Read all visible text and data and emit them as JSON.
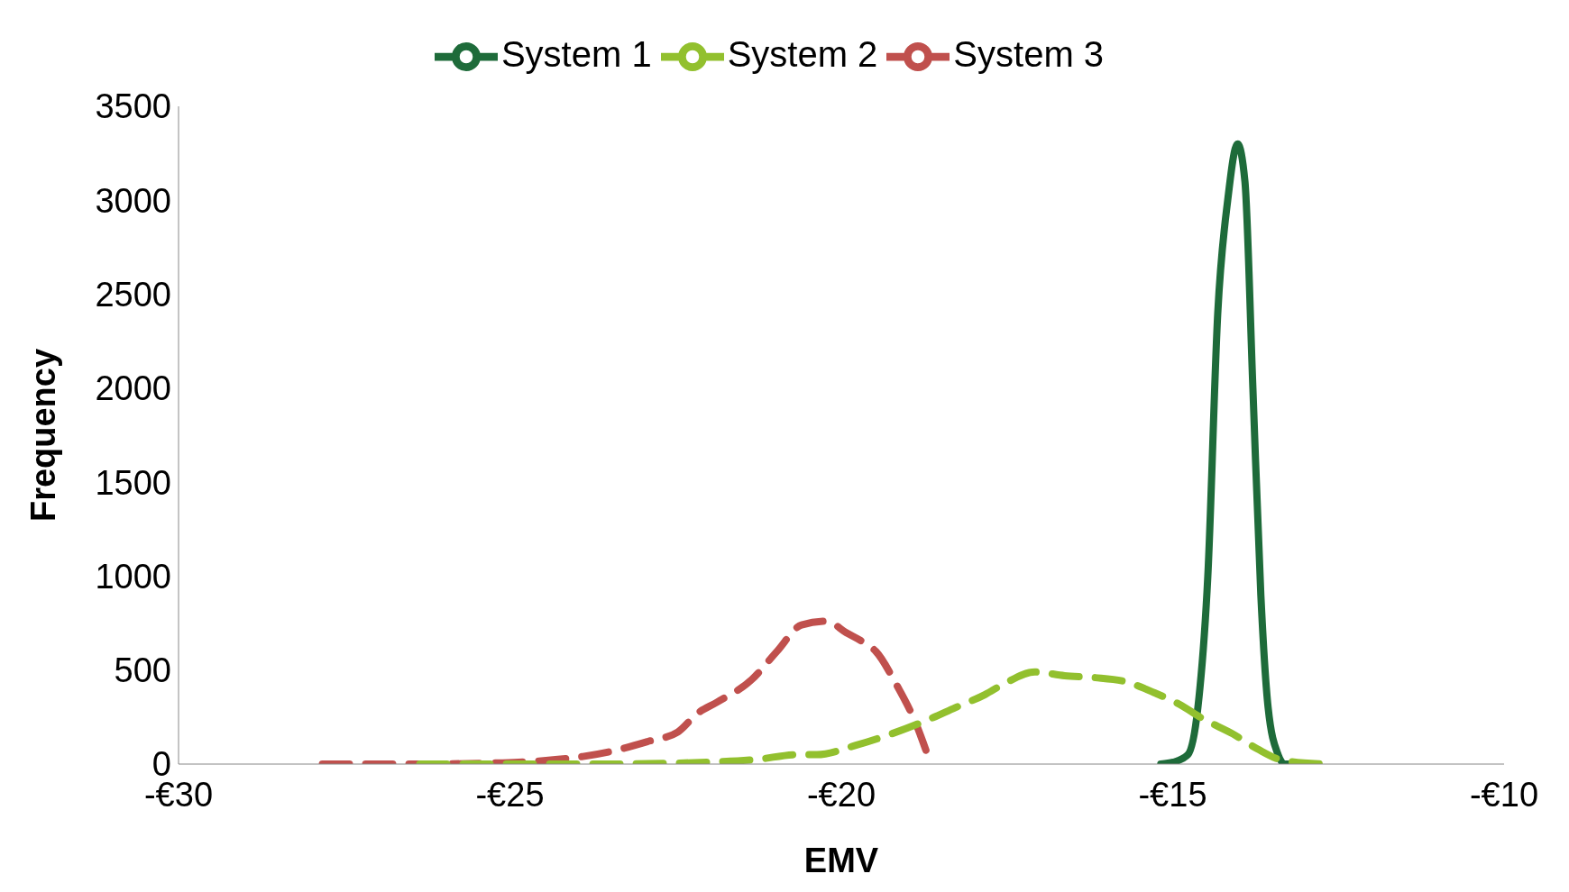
{
  "chart_data": {
    "type": "line",
    "xlabel": "EMV",
    "ylabel": "Frequency",
    "legend": "top",
    "marker": "none",
    "xlim": [
      -30,
      -10
    ],
    "xticks": [
      {
        "value": -30,
        "label": "-€30"
      },
      {
        "value": -25,
        "label": "-€25"
      },
      {
        "value": -20,
        "label": "-€20"
      },
      {
        "value": -15,
        "label": "-€15"
      },
      {
        "value": -10,
        "label": "-€10"
      }
    ],
    "ylim": [
      0,
      3500
    ],
    "yticks": [
      0,
      500,
      1000,
      1500,
      2000,
      2500,
      3000,
      3500
    ],
    "grid": false,
    "series": [
      {
        "name": "System 1",
        "color": "#1e6b3a",
        "line_style": "solid",
        "x": [
          -15.18,
          -14.99,
          -14.77,
          -14.62,
          -14.47,
          -14.32,
          -14.17,
          -14.02,
          -13.91,
          -13.79,
          -13.67,
          -13.56,
          -13.41,
          -13.31,
          -13.19
        ],
        "values": [
          0,
          10,
          50,
          300,
          1000,
          2400,
          3000,
          3300,
          3100,
          2000,
          900,
          300,
          50,
          0,
          0
        ]
      },
      {
        "name": "System 3",
        "color": "#c0504d",
        "line_style": "dashed",
        "x": [
          -27.83,
          -26.9,
          -26.36,
          -25.31,
          -24.87,
          -24.42,
          -23.9,
          -23.44,
          -22.92,
          -22.47,
          -22.17,
          -21.87,
          -21.35,
          -20.97,
          -20.6,
          -20.22,
          -19.93,
          -19.63,
          -19.48,
          -19.18,
          -18.88,
          -18.65
        ],
        "values": [
          0,
          0,
          0,
          5,
          10,
          20,
          40,
          70,
          120,
          170,
          270,
          330,
          450,
          600,
          740,
          760,
          700,
          640,
          600,
          430,
          220,
          0
        ]
      },
      {
        "name": "System 2",
        "color": "#92c02e",
        "line_style": "dashed",
        "x": [
          -26.36,
          -24.87,
          -23.67,
          -22.92,
          -22.02,
          -21.27,
          -20.67,
          -20.37,
          -19.78,
          -19.33,
          -18.73,
          -18.28,
          -17.83,
          -17.53,
          -17.08,
          -16.63,
          -16.18,
          -15.73,
          -15.28,
          -14.91,
          -14.54,
          -14.09,
          -13.72,
          -13.34,
          -12.74
        ],
        "values": [
          0,
          0,
          0,
          2,
          10,
          25,
          50,
          50,
          100,
          150,
          230,
          300,
          370,
          430,
          490,
          470,
          460,
          440,
          380,
          320,
          240,
          160,
          80,
          20,
          0
        ]
      }
    ]
  }
}
